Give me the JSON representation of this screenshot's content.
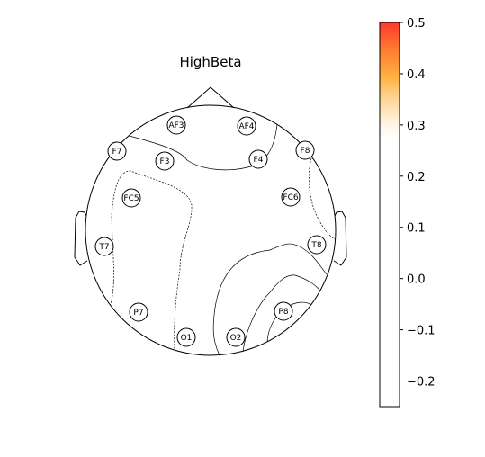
{
  "chart_data": {
    "type": "topomap",
    "title": "HighBeta",
    "electrodes": [
      {
        "name": "AF3"
      },
      {
        "name": "AF4"
      },
      {
        "name": "F7"
      },
      {
        "name": "F8"
      },
      {
        "name": "F3"
      },
      {
        "name": "F4"
      },
      {
        "name": "FC5"
      },
      {
        "name": "FC6"
      },
      {
        "name": "T7"
      },
      {
        "name": "T8"
      },
      {
        "name": "P7"
      },
      {
        "name": "P8"
      },
      {
        "name": "O1"
      },
      {
        "name": "O2"
      }
    ],
    "colorbar": {
      "range": [
        -0.25,
        0.5
      ],
      "ticks": [
        -0.2,
        -0.1,
        0.0,
        0.1,
        0.2,
        0.3,
        0.4,
        0.5
      ],
      "tick_labels": [
        "−0.2",
        "−0.1",
        "0.0",
        "0.1",
        "0.2",
        "0.3",
        "0.4",
        "0.5"
      ],
      "colors": {
        "high": "#ff3a2e",
        "mid": "#ffad30",
        "low": "#ffffff"
      }
    }
  }
}
